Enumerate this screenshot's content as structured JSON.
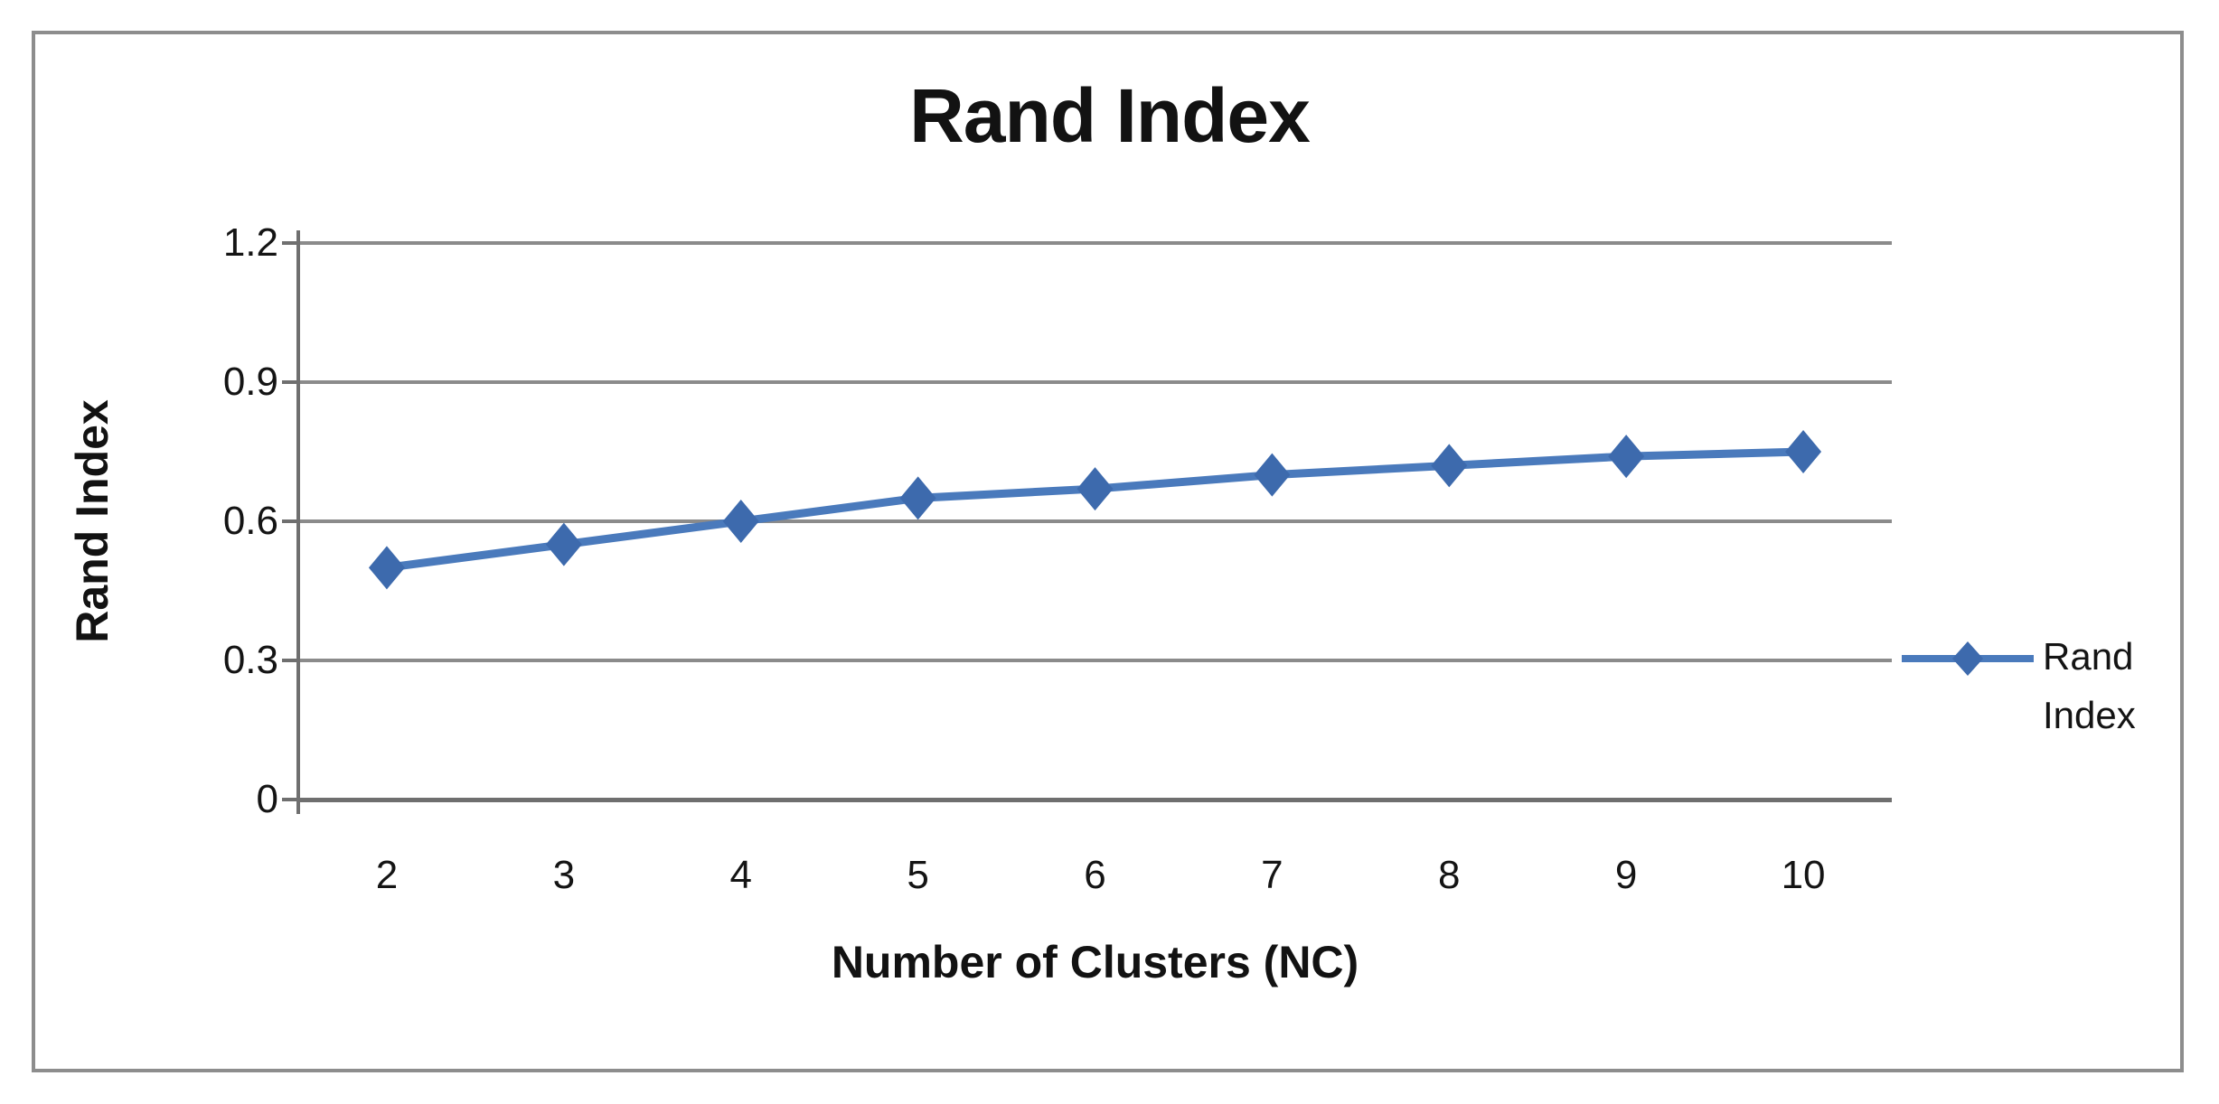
{
  "chart_data": {
    "type": "line",
    "title": "Rand Index",
    "xlabel": "Number of Clusters (NC)",
    "ylabel": "Rand Index",
    "x": [
      2,
      3,
      4,
      5,
      6,
      7,
      8,
      9,
      10
    ],
    "series": [
      {
        "name": "Rand Index",
        "values": [
          0.5,
          0.55,
          0.6,
          0.65,
          0.67,
          0.7,
          0.72,
          0.74,
          0.75
        ]
      }
    ],
    "ylim": [
      0,
      1.2
    ],
    "yticks": [
      0,
      0.3,
      0.6,
      0.9,
      1.2
    ],
    "ytick_labels": [
      "0",
      "0.3",
      "0.6",
      "0.9",
      "1.2"
    ],
    "grid": true,
    "legend_position": "right",
    "marker_shape": "diamond",
    "colors": {
      "line": "#4a7abc",
      "marker": "#3d6aad",
      "grid": "#8b8b8b",
      "axis": "#6f6f6f",
      "border": "#8d8d8d",
      "text": "#141414"
    }
  }
}
